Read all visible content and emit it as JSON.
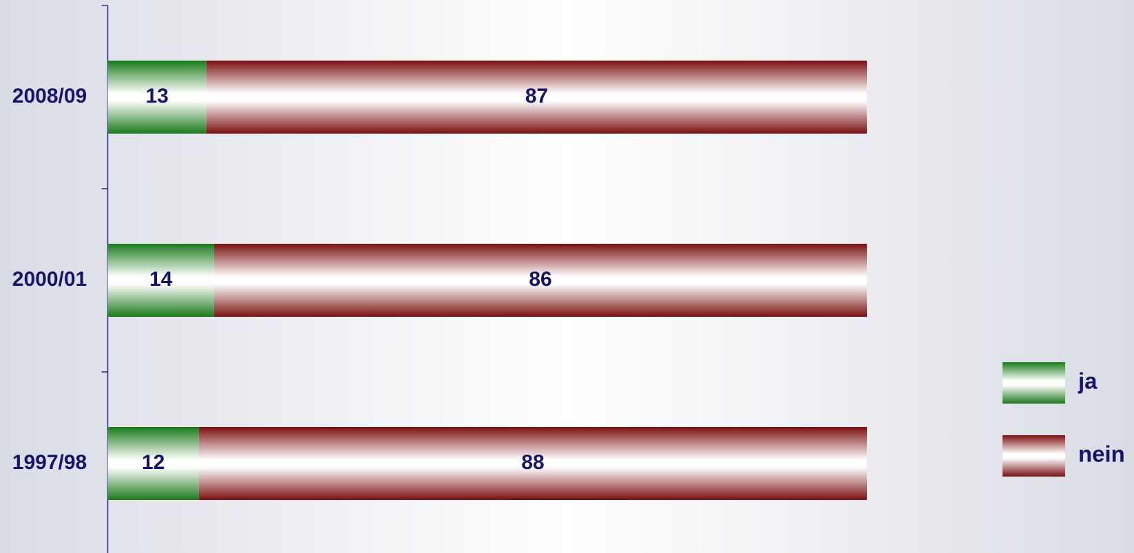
{
  "chart_data": {
    "type": "stacked_barh",
    "categories": [
      "2008/09",
      "2000/01",
      "1997/98"
    ],
    "series": [
      {
        "name": "ja",
        "color": "#1a7a1a",
        "values": [
          13,
          14,
          12
        ]
      },
      {
        "name": "nein",
        "color": "#7a1010",
        "values": [
          87,
          86,
          88
        ]
      }
    ],
    "xlim": [
      0,
      100
    ],
    "legend": "right"
  }
}
